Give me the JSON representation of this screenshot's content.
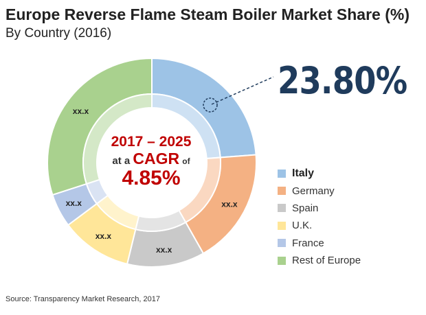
{
  "chart_data": {
    "type": "pie",
    "title": "Europe Reverse Flame Steam Boiler Market Share (%)",
    "subtitle": "By Country (2016)",
    "categories": [
      "Italy",
      "Germany",
      "Spain",
      "U.K.",
      "France",
      "Rest of Europe"
    ],
    "values": [
      23.8,
      18.0,
      12.0,
      11.0,
      5.2,
      30.0
    ],
    "data_labels": [
      "",
      "xx.x",
      "xx.x",
      "xx.x",
      "xx.x",
      "xx.x"
    ],
    "colors": [
      "#9dc3e6",
      "#f4b183",
      "#c9c9c9",
      "#ffe699",
      "#b4c7e7",
      "#a9d18e"
    ],
    "highlight": {
      "category": "Italy",
      "label": "23.80%",
      "text_color": "#1f3b5c"
    },
    "center": {
      "years": "2017 – 2025",
      "at_a": "at a",
      "cagr": "CAGR",
      "of": "of",
      "value": "4.85%"
    },
    "legend_position": "right",
    "source": "Source: Transparency Market Research, 2017"
  }
}
